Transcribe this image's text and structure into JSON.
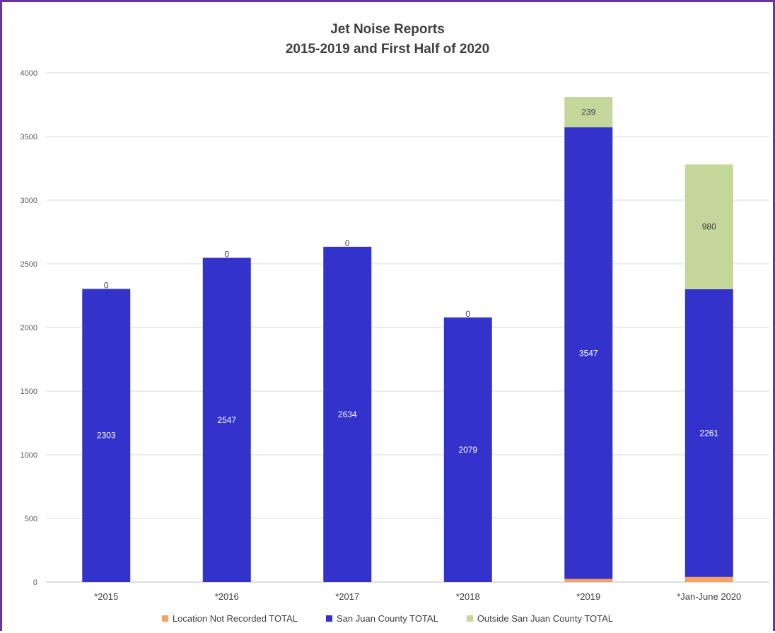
{
  "chart_data": {
    "type": "bar",
    "stacked": true,
    "title": "Jet Noise Reports",
    "subtitle": "2015-2019 and First Half of 2020",
    "categories": [
      "*2015",
      "*2016",
      "*2017",
      "*2018",
      "*2019",
      "*Jan-June 2020"
    ],
    "series": [
      {
        "name": "Location Not Recorded TOTAL",
        "color": "#f4a460",
        "values": [
          0,
          0,
          0,
          0,
          25,
          40
        ]
      },
      {
        "name": "San Juan County TOTAL",
        "color": "#3333cc",
        "values": [
          2303,
          2547,
          2634,
          2079,
          3547,
          2261
        ]
      },
      {
        "name": "Outside San Juan County TOTAL",
        "color": "#c4d79b",
        "values": [
          0,
          0,
          0,
          0,
          239,
          980
        ]
      }
    ],
    "data_labels": {
      "San Juan County TOTAL": [
        "2303",
        "2547",
        "2634",
        "2079",
        "3547",
        "2261"
      ],
      "Outside San Juan County TOTAL": [
        "0",
        "0",
        "0",
        "0",
        "239",
        "980"
      ]
    },
    "ylim": [
      0,
      4000
    ],
    "yticks": [
      0,
      500,
      1000,
      1500,
      2000,
      2500,
      3000,
      3500,
      4000
    ],
    "grid": true,
    "legend_position": "bottom",
    "xlabel": "",
    "ylabel": ""
  }
}
